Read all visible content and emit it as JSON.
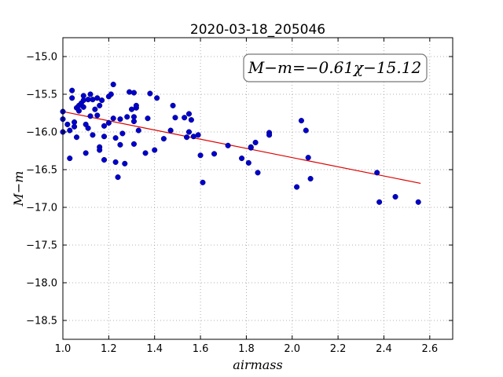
{
  "chart_data": {
    "type": "scatter",
    "title": "2020-03-18_205046",
    "xlabel": "airmass",
    "ylabel": "M−m",
    "annotation": "M−m=−0.61χ−15.12",
    "xlim": [
      1.0,
      2.7
    ],
    "ylim": [
      -18.75,
      -14.75
    ],
    "xticks": [
      1.0,
      1.2,
      1.4,
      1.6,
      1.8,
      2.0,
      2.2,
      2.4,
      2.6
    ],
    "xtick_labels": [
      "1.0",
      "1.2",
      "1.4",
      "1.6",
      "1.8",
      "2.0",
      "2.2",
      "2.4",
      "2.6"
    ],
    "yticks": [
      -15.0,
      -15.5,
      -16.0,
      -16.5,
      -17.0,
      -17.5,
      -18.0,
      -18.5
    ],
    "ytick_labels": [
      "−15.0",
      "−15.5",
      "−16.0",
      "−16.5",
      "−17.0",
      "−17.5",
      "−18.0",
      "−18.5"
    ],
    "grid": true,
    "colors": {
      "points": "#0000cc",
      "fit_line": "#dd0000",
      "grid": "#999999"
    },
    "fit": {
      "slope": -0.61,
      "intercept": -15.12,
      "x_range": [
        1.0,
        2.56
      ]
    },
    "points": [
      {
        "x": 1.0,
        "y": -15.73
      },
      {
        "x": 1.0,
        "y": -15.83
      },
      {
        "x": 1.0,
        "y": -16.0
      },
      {
        "x": 1.02,
        "y": -15.9
      },
      {
        "x": 1.03,
        "y": -15.98
      },
      {
        "x": 1.03,
        "y": -16.35
      },
      {
        "x": 1.04,
        "y": -15.45
      },
      {
        "x": 1.04,
        "y": -15.55
      },
      {
        "x": 1.05,
        "y": -15.87
      },
      {
        "x": 1.05,
        "y": -15.93
      },
      {
        "x": 1.06,
        "y": -16.07
      },
      {
        "x": 1.06,
        "y": -15.68
      },
      {
        "x": 1.07,
        "y": -15.65
      },
      {
        "x": 1.07,
        "y": -15.72
      },
      {
        "x": 1.08,
        "y": -15.62
      },
      {
        "x": 1.09,
        "y": -15.52
      },
      {
        "x": 1.09,
        "y": -15.58
      },
      {
        "x": 1.09,
        "y": -15.67
      },
      {
        "x": 1.1,
        "y": -15.9
      },
      {
        "x": 1.1,
        "y": -16.28
      },
      {
        "x": 1.11,
        "y": -15.95
      },
      {
        "x": 1.11,
        "y": -15.57
      },
      {
        "x": 1.12,
        "y": -15.5
      },
      {
        "x": 1.12,
        "y": -15.79
      },
      {
        "x": 1.13,
        "y": -16.04
      },
      {
        "x": 1.13,
        "y": -15.57
      },
      {
        "x": 1.14,
        "y": -15.7
      },
      {
        "x": 1.15,
        "y": -15.55
      },
      {
        "x": 1.15,
        "y": -15.78
      },
      {
        "x": 1.16,
        "y": -15.65
      },
      {
        "x": 1.16,
        "y": -16.2
      },
      {
        "x": 1.16,
        "y": -16.24
      },
      {
        "x": 1.17,
        "y": -15.58
      },
      {
        "x": 1.18,
        "y": -15.92
      },
      {
        "x": 1.18,
        "y": -16.06
      },
      {
        "x": 1.18,
        "y": -16.37
      },
      {
        "x": 1.2,
        "y": -15.53
      },
      {
        "x": 1.2,
        "y": -15.88
      },
      {
        "x": 1.21,
        "y": -15.5
      },
      {
        "x": 1.22,
        "y": -15.37
      },
      {
        "x": 1.22,
        "y": -15.82
      },
      {
        "x": 1.23,
        "y": -16.08
      },
      {
        "x": 1.23,
        "y": -16.4
      },
      {
        "x": 1.24,
        "y": -16.6
      },
      {
        "x": 1.25,
        "y": -16.17
      },
      {
        "x": 1.25,
        "y": -15.83
      },
      {
        "x": 1.26,
        "y": -16.02
      },
      {
        "x": 1.27,
        "y": -16.42
      },
      {
        "x": 1.28,
        "y": -15.8
      },
      {
        "x": 1.29,
        "y": -15.47
      },
      {
        "x": 1.3,
        "y": -15.7
      },
      {
        "x": 1.31,
        "y": -15.48
      },
      {
        "x": 1.31,
        "y": -15.8
      },
      {
        "x": 1.31,
        "y": -15.86
      },
      {
        "x": 1.31,
        "y": -16.16
      },
      {
        "x": 1.32,
        "y": -15.68
      },
      {
        "x": 1.32,
        "y": -15.65
      },
      {
        "x": 1.33,
        "y": -15.98
      },
      {
        "x": 1.36,
        "y": -16.28
      },
      {
        "x": 1.37,
        "y": -15.82
      },
      {
        "x": 1.38,
        "y": -15.49
      },
      {
        "x": 1.4,
        "y": -16.24
      },
      {
        "x": 1.41,
        "y": -15.55
      },
      {
        "x": 1.44,
        "y": -16.09
      },
      {
        "x": 1.47,
        "y": -15.98
      },
      {
        "x": 1.48,
        "y": -15.65
      },
      {
        "x": 1.49,
        "y": -15.81
      },
      {
        "x": 1.53,
        "y": -15.81
      },
      {
        "x": 1.54,
        "y": -16.07
      },
      {
        "x": 1.55,
        "y": -16.0
      },
      {
        "x": 1.55,
        "y": -15.76
      },
      {
        "x": 1.56,
        "y": -15.84
      },
      {
        "x": 1.57,
        "y": -16.06
      },
      {
        "x": 1.59,
        "y": -16.04
      },
      {
        "x": 1.6,
        "y": -16.31
      },
      {
        "x": 1.61,
        "y": -16.67
      },
      {
        "x": 1.66,
        "y": -16.29
      },
      {
        "x": 1.72,
        "y": -16.18
      },
      {
        "x": 1.78,
        "y": -16.35
      },
      {
        "x": 1.81,
        "y": -16.41
      },
      {
        "x": 1.82,
        "y": -16.2
      },
      {
        "x": 1.82,
        "y": -16.21
      },
      {
        "x": 1.84,
        "y": -16.14
      },
      {
        "x": 1.85,
        "y": -16.54
      },
      {
        "x": 1.9,
        "y": -16.01
      },
      {
        "x": 1.9,
        "y": -16.04
      },
      {
        "x": 2.02,
        "y": -16.73
      },
      {
        "x": 2.04,
        "y": -15.85
      },
      {
        "x": 2.06,
        "y": -15.98
      },
      {
        "x": 2.07,
        "y": -16.34
      },
      {
        "x": 2.08,
        "y": -16.62
      },
      {
        "x": 2.37,
        "y": -16.54
      },
      {
        "x": 2.38,
        "y": -16.93
      },
      {
        "x": 2.45,
        "y": -16.86
      },
      {
        "x": 2.55,
        "y": -16.93
      }
    ]
  }
}
